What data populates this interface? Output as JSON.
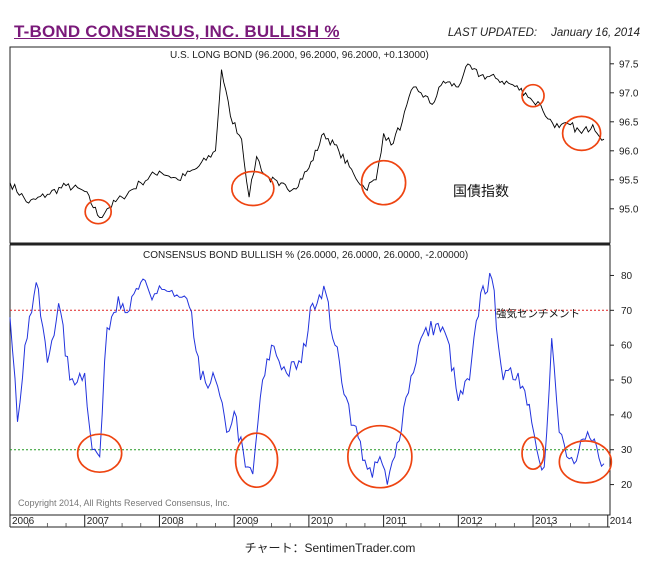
{
  "header": {
    "title": "T-BOND CONSENSUS, INC. BULLISH %",
    "updated_label": "LAST UPDATED:",
    "updated_date": "January 16, 2014"
  },
  "caption": "チャート：SentimenTrader.com",
  "colors": {
    "title": "#7a1a7a",
    "bond_line": "#000000",
    "bullish_line": "#2233dd",
    "upper_line": "#dd2222",
    "lower_line": "#229922",
    "circles": "#ee4411"
  },
  "chart_data": [
    {
      "type": "line",
      "title": "U.S. LONG BOND (96.2000, 96.2000, 96.2000, +0.13000)",
      "annotation": "国債指数",
      "ylim": [
        94.6,
        97.6
      ],
      "yticks": [
        "95.0",
        "95.5",
        "96.0",
        "96.5",
        "97.0",
        "97.5"
      ],
      "y_tick_values": [
        95.0,
        95.5,
        96.0,
        96.5,
        97.0,
        97.5
      ],
      "series": [
        {
          "x": [
            2006.0,
            2006.25,
            2006.5,
            2006.75,
            2007.0,
            2007.2,
            2007.3,
            2007.5,
            2007.75,
            2008.0,
            2008.25,
            2008.5,
            2008.75,
            2008.83,
            2008.95,
            2009.1,
            2009.2,
            2009.3,
            2009.4,
            2009.6,
            2009.8,
            2010.0,
            2010.2,
            2010.4,
            2010.6,
            2010.75,
            2010.9,
            2011.0,
            2011.1,
            2011.25,
            2011.4,
            2011.5,
            2011.65,
            2011.8,
            2012.0,
            2012.1,
            2012.3,
            2012.5,
            2012.7,
            2012.9,
            2013.0,
            2013.1,
            2013.2,
            2013.35,
            2013.5,
            2013.65,
            2013.8,
            2013.95
          ],
          "values": [
            95.45,
            95.1,
            95.25,
            95.4,
            95.3,
            94.85,
            95.0,
            95.2,
            95.45,
            95.65,
            95.5,
            95.7,
            96.0,
            97.4,
            96.6,
            96.2,
            95.2,
            95.9,
            95.6,
            95.4,
            95.35,
            95.7,
            96.3,
            96.0,
            95.6,
            95.35,
            95.5,
            96.3,
            96.1,
            96.5,
            97.1,
            97.0,
            96.8,
            97.2,
            97.1,
            97.45,
            97.3,
            97.25,
            97.15,
            97.0,
            96.85,
            96.8,
            96.55,
            96.4,
            96.45,
            96.3,
            96.45,
            96.2
          ]
        }
      ]
    },
    {
      "type": "line",
      "title": "CONSENSUS BOND BULLISH % (26.0000, 26.0000, 26.0000, -2.00000)",
      "annotation": "強気センチメント",
      "copyright": "Copyright 2014, All Rights Reserved  Consensus, Inc.",
      "ylim": [
        15,
        83
      ],
      "yticks": [
        "20",
        "30",
        "40",
        "50",
        "60",
        "70",
        "80"
      ],
      "y_tick_values": [
        20,
        30,
        40,
        50,
        60,
        70,
        80
      ],
      "reference_lines": [
        70,
        30
      ],
      "xlabels": [
        "2006",
        "2007",
        "2008",
        "2009",
        "2010",
        "2011",
        "2012",
        "2013",
        "2014"
      ],
      "x_tick_values": [
        2006,
        2007,
        2008,
        2009,
        2010,
        2011,
        2012,
        2013,
        2014
      ],
      "series": [
        {
          "x": [
            2006.0,
            2006.1,
            2006.2,
            2006.35,
            2006.5,
            2006.65,
            2006.8,
            2007.0,
            2007.1,
            2007.2,
            2007.3,
            2007.45,
            2007.6,
            2007.75,
            2007.9,
            2008.0,
            2008.2,
            2008.4,
            2008.55,
            2008.75,
            2008.9,
            2009.0,
            2009.15,
            2009.25,
            2009.35,
            2009.5,
            2009.7,
            2009.9,
            2010.05,
            2010.2,
            2010.35,
            2010.5,
            2010.6,
            2010.75,
            2010.85,
            2010.95,
            2011.05,
            2011.15,
            2011.3,
            2011.5,
            2011.7,
            2011.85,
            2012.0,
            2012.15,
            2012.3,
            2012.45,
            2012.6,
            2012.8,
            2012.95,
            2013.05,
            2013.15,
            2013.25,
            2013.35,
            2013.45,
            2013.55,
            2013.7,
            2013.85,
            2013.95
          ],
          "values": [
            68,
            38,
            60,
            78,
            55,
            72,
            50,
            52,
            30,
            28,
            65,
            74,
            70,
            78,
            73,
            77,
            74,
            71,
            50,
            50,
            35,
            41,
            25,
            23,
            45,
            60,
            52,
            55,
            72,
            77,
            60,
            45,
            37,
            27,
            22,
            28,
            20,
            28,
            45,
            62,
            66,
            62,
            44,
            50,
            75,
            79,
            50,
            52,
            43,
            30,
            25,
            62,
            35,
            28,
            26,
            33,
            31,
            26
          ]
        }
      ]
    }
  ]
}
